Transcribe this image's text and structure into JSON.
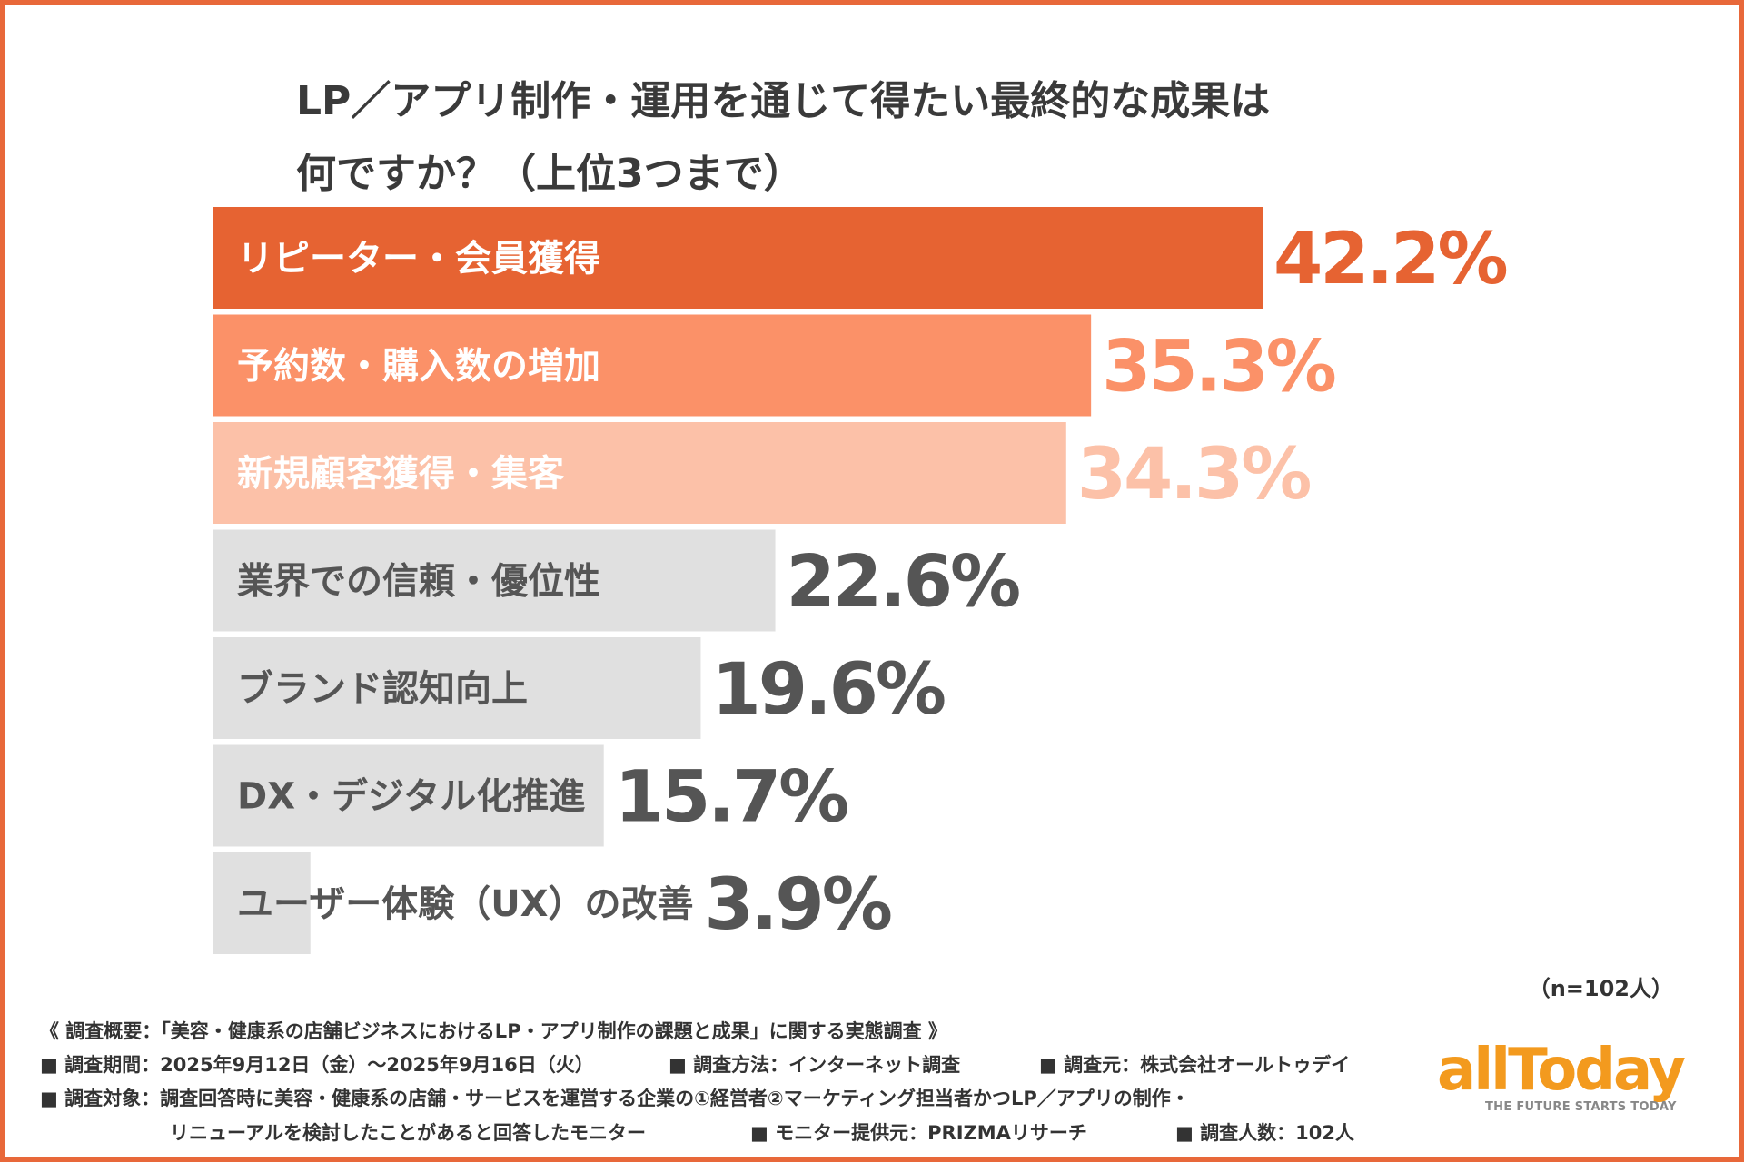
{
  "title": {
    "line1": "LP／アプリ制作・運用を通じて得たい最終的な成果は",
    "line2": "何ですか？（上位3つまで）"
  },
  "chart_data": {
    "type": "bar",
    "orientation": "horizontal",
    "title": "LP／アプリ制作・運用を通じて得たい最終的な成果は何ですか？（上位3つまで）",
    "unit": "%",
    "categories": [
      "リピーター・会員獲得",
      "予約数・購入数の増加",
      "新規顧客獲得・集客",
      "業界での信頼・優位性",
      "ブランド認知向上",
      "DX・デジタル化推進",
      "ユーザー体験（UX）の改善"
    ],
    "values": [
      42.2,
      35.3,
      34.3,
      22.6,
      19.6,
      15.7,
      3.9
    ],
    "value_labels": [
      "42.2%",
      "35.3%",
      "34.3%",
      "22.6%",
      "19.6%",
      "15.7%",
      "3.9%"
    ],
    "bar_colors": [
      "#e66332",
      "#fb9168",
      "#fcc1a8",
      "#e0e0e0",
      "#e0e0e0",
      "#e0e0e0",
      "#e0e0e0"
    ],
    "label_colors": [
      "#ffffff",
      "#ffffff",
      "#ffffff",
      "#555555",
      "#555555",
      "#555555",
      "#555555"
    ],
    "value_colors": [
      "#e66332",
      "#fb9168",
      "#fcc1a8",
      "#555555",
      "#555555",
      "#555555",
      "#555555"
    ]
  },
  "sample_note": "（n=102人）",
  "footer": {
    "survey_title": "《 調査概要：「美容・健康系の店舗ビジネスにおけるLP・アプリ制作の課題と成果」に関する実態調査 》",
    "period": "■ 調査期間：2025年9月12日（金）〜2025年9月16日（火）",
    "method": "■ 調査方法：インターネット調査",
    "organizer": "■ 調査元：株式会社オールトゥデイ",
    "target_line1": "■ 調査対象：調査回答時に美容・健康系の店舗・サービスを運営する企業の①経営者②マーケティング担当者かつLP／アプリの制作・",
    "target_line2": "リニューアルを検討したことがあると回答したモニター",
    "provider": "■ モニター提供元：PRIZMAリサーチ",
    "respondents": "■ 調査人数：102人"
  },
  "logo": {
    "text": "allToday",
    "tagline": "THE FUTURE STARTS TODAY"
  }
}
